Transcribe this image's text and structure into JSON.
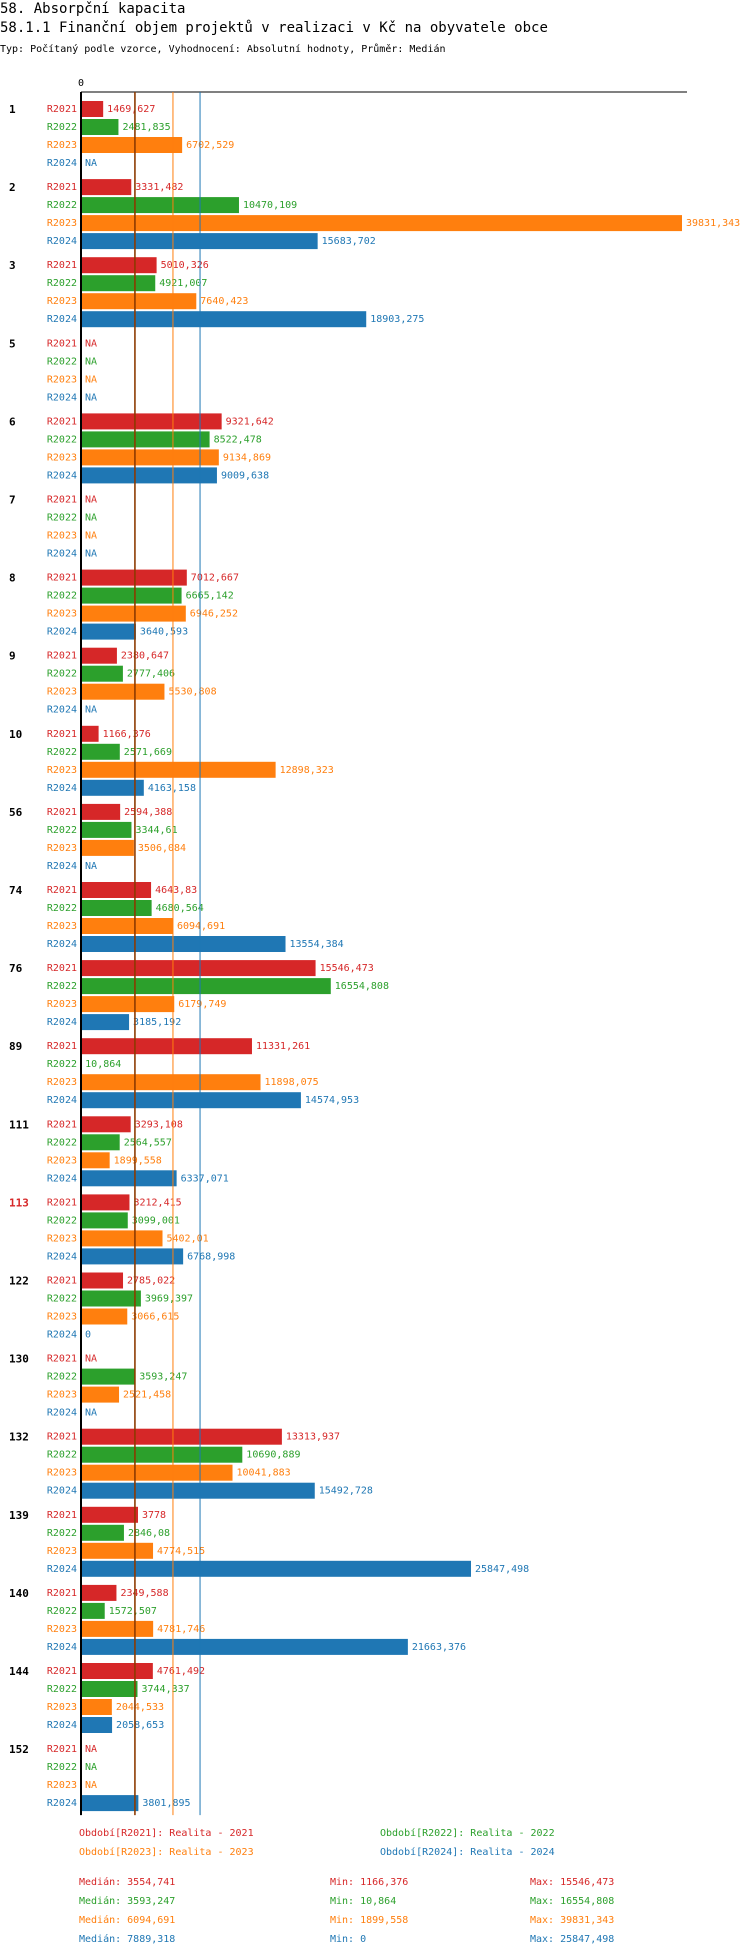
{
  "header": {
    "section_title": "58. Absorpční kapacita",
    "chart_title": "58.1.1 Finanční objem projektů v realizaci v Kč na obyvatele obce",
    "subtitle": "Typ: Počítaný podle vzorce, Vyhodnocení: Absolutní hodnoty, Průměr: Medián"
  },
  "colors": {
    "R2021": "#d62728",
    "R2022": "#2ca02c",
    "R2023": "#ff7f0e",
    "R2024": "#1f77b4",
    "highlight": "#d62728"
  },
  "chart_data": {
    "type": "bar",
    "orientation": "horizontal",
    "axis_zero_label": "0",
    "xlim": [
      0,
      39831.343
    ],
    "series_names": [
      "R2021",
      "R2022",
      "R2023",
      "R2024"
    ],
    "groups": [
      {
        "id": "1",
        "values": [
          1469.627,
          2481.835,
          6702.529,
          null
        ],
        "labels": [
          "1469,627",
          "2481,835",
          "6702,529",
          "NA"
        ]
      },
      {
        "id": "2",
        "values": [
          3331.482,
          10470.109,
          39831.343,
          15683.702
        ],
        "labels": [
          "3331,482",
          "10470,109",
          "39831,343",
          "15683,702"
        ]
      },
      {
        "id": "3",
        "values": [
          5010.326,
          4921.007,
          7640.423,
          18903.275
        ],
        "labels": [
          "5010,326",
          "4921,007",
          "7640,423",
          "18903,275"
        ]
      },
      {
        "id": "5",
        "values": [
          null,
          null,
          null,
          null
        ],
        "labels": [
          "NA",
          "NA",
          "NA",
          "NA"
        ]
      },
      {
        "id": "6",
        "values": [
          9321.642,
          8522.478,
          9134.869,
          9009.638
        ],
        "labels": [
          "9321,642",
          "8522,478",
          "9134,869",
          "9009,638"
        ]
      },
      {
        "id": "7",
        "values": [
          null,
          null,
          null,
          null
        ],
        "labels": [
          "NA",
          "NA",
          "NA",
          "NA"
        ]
      },
      {
        "id": "8",
        "values": [
          7012.667,
          6665.142,
          6946.252,
          3640.593
        ],
        "labels": [
          "7012,667",
          "6665,142",
          "6946,252",
          "3640,593"
        ]
      },
      {
        "id": "9",
        "values": [
          2380.647,
          2777.406,
          5530.808,
          null
        ],
        "labels": [
          "2380,647",
          "2777,406",
          "5530,808",
          "NA"
        ]
      },
      {
        "id": "10",
        "values": [
          1166.376,
          2571.669,
          12898.323,
          4163.158
        ],
        "labels": [
          "1166,376",
          "2571,669",
          "12898,323",
          "4163,158"
        ]
      },
      {
        "id": "56",
        "values": [
          2594.388,
          3344.61,
          3506.084,
          null
        ],
        "labels": [
          "2594,388",
          "3344,61",
          "3506,084",
          "NA"
        ]
      },
      {
        "id": "74",
        "values": [
          4643.83,
          4680.564,
          6094.691,
          13554.384
        ],
        "labels": [
          "4643,83",
          "4680,564",
          "6094,691",
          "13554,384"
        ]
      },
      {
        "id": "76",
        "values": [
          15546.473,
          16554.808,
          6179.749,
          3185.192
        ],
        "labels": [
          "15546,473",
          "16554,808",
          "6179,749",
          "3185,192"
        ]
      },
      {
        "id": "89",
        "values": [
          11331.261,
          10.864,
          11898.075,
          14574.953
        ],
        "labels": [
          "11331,261",
          "10,864",
          "11898,075",
          "14574,953"
        ]
      },
      {
        "id": "111",
        "values": [
          3293.108,
          2564.557,
          1899.558,
          6337.071
        ],
        "labels": [
          "3293,108",
          "2564,557",
          "1899,558",
          "6337,071"
        ]
      },
      {
        "id": "113",
        "highlight": true,
        "values": [
          3212.415,
          3099.001,
          5402.01,
          6768.998
        ],
        "labels": [
          "3212,415",
          "3099,001",
          "5402,01",
          "6768,998"
        ]
      },
      {
        "id": "122",
        "values": [
          2785.022,
          3969.397,
          3066.615,
          0
        ],
        "labels": [
          "2785,022",
          "3969,397",
          "3066,615",
          "0"
        ]
      },
      {
        "id": "130",
        "values": [
          null,
          3593.247,
          2521.458,
          null
        ],
        "labels": [
          "NA",
          "3593,247",
          "2521,458",
          "NA"
        ]
      },
      {
        "id": "132",
        "values": [
          13313.937,
          10690.889,
          10041.883,
          15492.728
        ],
        "labels": [
          "13313,937",
          "10690,889",
          "10041,883",
          "15492,728"
        ]
      },
      {
        "id": "139",
        "values": [
          3778,
          2846.08,
          4774.515,
          25847.498
        ],
        "labels": [
          "3778",
          "2846,08",
          "4774,515",
          "25847,498"
        ]
      },
      {
        "id": "140",
        "values": [
          2349.588,
          1572.507,
          4781.746,
          21663.376
        ],
        "labels": [
          "2349,588",
          "1572,507",
          "4781,746",
          "21663,376"
        ]
      },
      {
        "id": "144",
        "values": [
          4761.492,
          3744.337,
          2044.533,
          2058.653
        ],
        "labels": [
          "4761,492",
          "3744,337",
          "2044,533",
          "2058,653"
        ]
      },
      {
        "id": "152",
        "values": [
          null,
          null,
          null,
          3801.895
        ],
        "labels": [
          "NA",
          "NA",
          "NA",
          "3801,895"
        ]
      }
    ],
    "median_lines": {
      "R2021": 3554.741,
      "R2022": 3593.247,
      "R2023": 6094.691,
      "R2024": 7889.318
    },
    "legend": [
      {
        "series": "R2021",
        "text": "Období[R2021]: Realita - 2021"
      },
      {
        "series": "R2022",
        "text": "Období[R2022]: Realita - 2022"
      },
      {
        "series": "R2023",
        "text": "Období[R2023]: Realita - 2023"
      },
      {
        "series": "R2024",
        "text": "Období[R2024]: Realita - 2024"
      }
    ],
    "stats": [
      {
        "series": "R2021",
        "median": "Medián: 3554,741",
        "min": "Min: 1166,376",
        "max": "Max: 15546,473"
      },
      {
        "series": "R2022",
        "median": "Medián: 3593,247",
        "min": "Min: 10,864",
        "max": "Max: 16554,808"
      },
      {
        "series": "R2023",
        "median": "Medián: 6094,691",
        "min": "Min: 1899,558",
        "max": "Max: 39831,343"
      },
      {
        "series": "R2024",
        "median": "Medián: 7889,318",
        "min": "Min: 0",
        "max": "Max: 25847,498"
      }
    ]
  }
}
